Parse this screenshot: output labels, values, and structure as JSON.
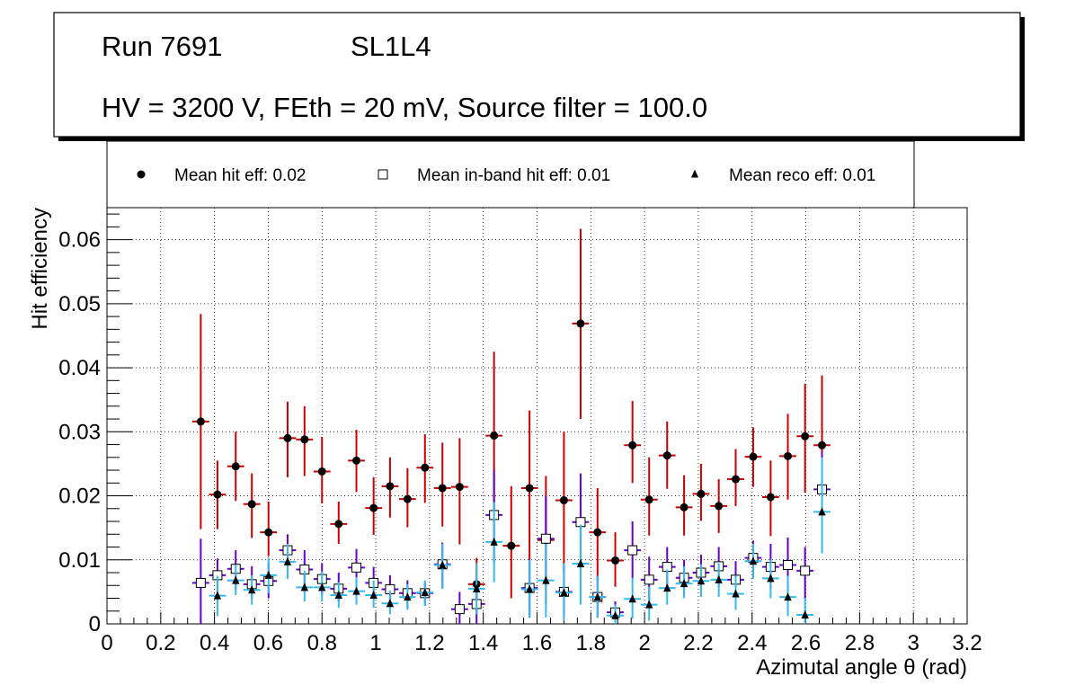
{
  "title_box": {
    "run": "Run 7691",
    "layer": "SL1L4",
    "conditions": "HV = 3200 V, FEth = 20 mV, Source filter = 100.0"
  },
  "legend": {
    "hit": "Mean hit  eff: 0.02",
    "inband": "Mean in-band hit eff: 0.01",
    "reco": "Mean reco eff: 0.01"
  },
  "colors": {
    "hit_err": "#cc0000",
    "inband_err": "#6600cc",
    "reco_err": "#33bbee"
  },
  "chart_data": {
    "type": "scatter",
    "xlabel": "Azimutal angle θ (rad)",
    "ylabel": "Hit efficiency",
    "xlim": [
      0,
      3.2
    ],
    "ylim": [
      0,
      0.065
    ],
    "grid": true,
    "xticks": [
      "0",
      "0.2",
      "0.4",
      "0.6",
      "0.8",
      "1",
      "1.2",
      "1.4",
      "1.6",
      "1.8",
      "2",
      "2.2",
      "2.4",
      "2.6",
      "2.8",
      "3",
      "3.2"
    ],
    "yticks": [
      "0",
      "0.01",
      "0.02",
      "0.03",
      "0.04",
      "0.05",
      "0.06"
    ],
    "x_bin_halfwidth": 0.0314,
    "series": [
      {
        "name": "Mean hit  eff: 0.02",
        "marker": "circle",
        "points": [
          {
            "x": 0.349,
            "y": 0.0316,
            "lo": 0.0148,
            "hi": 0.0484
          },
          {
            "x": 0.411,
            "y": 0.0202,
            "lo": 0.0148,
            "hi": 0.0255
          },
          {
            "x": 0.479,
            "y": 0.0246,
            "lo": 0.0192,
            "hi": 0.03
          },
          {
            "x": 0.539,
            "y": 0.0187,
            "lo": 0.0134,
            "hi": 0.0235
          },
          {
            "x": 0.601,
            "y": 0.0143,
            "lo": 0.0106,
            "hi": 0.0191
          },
          {
            "x": 0.672,
            "y": 0.029,
            "lo": 0.0229,
            "hi": 0.0347
          },
          {
            "x": 0.735,
            "y": 0.0288,
            "lo": 0.0231,
            "hi": 0.034
          },
          {
            "x": 0.8,
            "y": 0.0238,
            "lo": 0.0188,
            "hi": 0.0292
          },
          {
            "x": 0.862,
            "y": 0.0156,
            "lo": 0.0125,
            "hi": 0.0191
          },
          {
            "x": 0.928,
            "y": 0.0255,
            "lo": 0.0206,
            "hi": 0.0303
          },
          {
            "x": 0.992,
            "y": 0.0181,
            "lo": 0.0139,
            "hi": 0.0229
          },
          {
            "x": 1.053,
            "y": 0.0215,
            "lo": 0.0166,
            "hi": 0.026
          },
          {
            "x": 1.118,
            "y": 0.0195,
            "lo": 0.0151,
            "hi": 0.0243
          },
          {
            "x": 1.183,
            "y": 0.0244,
            "lo": 0.0189,
            "hi": 0.0296
          },
          {
            "x": 1.248,
            "y": 0.0212,
            "lo": 0.0152,
            "hi": 0.0283
          },
          {
            "x": 1.312,
            "y": 0.0214,
            "lo": 0.0124,
            "hi": 0.029
          },
          {
            "x": 1.375,
            "y": 0.0062,
            "lo": 0.0015,
            "hi": 0.0103
          },
          {
            "x": 1.44,
            "y": 0.0294,
            "lo": 0.0164,
            "hi": 0.0425
          },
          {
            "x": 1.504,
            "y": 0.0122,
            "lo": 0.004,
            "hi": 0.0215
          },
          {
            "x": 1.572,
            "y": 0.0212,
            "lo": 0.001,
            "hi": 0.0333
          },
          {
            "x": 1.633,
            "y": 0.0131,
            "lo": 0.003,
            "hi": 0.0231
          },
          {
            "x": 1.7,
            "y": 0.0193,
            "lo": 0.008,
            "hi": 0.03
          },
          {
            "x": 1.762,
            "y": 0.0469,
            "lo": 0.032,
            "hi": 0.0617
          },
          {
            "x": 1.825,
            "y": 0.0143,
            "lo": 0.0068,
            "hi": 0.0212
          },
          {
            "x": 1.891,
            "y": 0.0099,
            "lo": 0.0058,
            "hi": 0.0143
          },
          {
            "x": 1.955,
            "y": 0.0279,
            "lo": 0.022,
            "hi": 0.0348
          },
          {
            "x": 2.017,
            "y": 0.0194,
            "lo": 0.0138,
            "hi": 0.026
          },
          {
            "x": 2.084,
            "y": 0.0263,
            "lo": 0.0211,
            "hi": 0.0316
          },
          {
            "x": 2.147,
            "y": 0.0182,
            "lo": 0.0138,
            "hi": 0.0232
          },
          {
            "x": 2.21,
            "y": 0.0203,
            "lo": 0.0161,
            "hi": 0.025
          },
          {
            "x": 2.276,
            "y": 0.0184,
            "lo": 0.0142,
            "hi": 0.0226
          },
          {
            "x": 2.339,
            "y": 0.0226,
            "lo": 0.0184,
            "hi": 0.0273
          },
          {
            "x": 2.404,
            "y": 0.0261,
            "lo": 0.0214,
            "hi": 0.0307
          },
          {
            "x": 2.469,
            "y": 0.0198,
            "lo": 0.0137,
            "hi": 0.0255
          },
          {
            "x": 2.533,
            "y": 0.0262,
            "lo": 0.0194,
            "hi": 0.0328
          },
          {
            "x": 2.597,
            "y": 0.0293,
            "lo": 0.0205,
            "hi": 0.0375
          },
          {
            "x": 2.66,
            "y": 0.0279,
            "lo": 0.0207,
            "hi": 0.0388
          }
        ]
      },
      {
        "name": "Mean in-band hit eff: 0.01",
        "marker": "open-square",
        "points": [
          {
            "x": 0.349,
            "y": 0.0064,
            "lo": 0.0,
            "hi": 0.0133
          },
          {
            "x": 0.411,
            "y": 0.0076,
            "lo": 0.0035,
            "hi": 0.0102
          },
          {
            "x": 0.479,
            "y": 0.0086,
            "lo": 0.0053,
            "hi": 0.0115
          },
          {
            "x": 0.539,
            "y": 0.0062,
            "lo": 0.004,
            "hi": 0.009
          },
          {
            "x": 0.601,
            "y": 0.0067,
            "lo": 0.004,
            "hi": 0.0096
          },
          {
            "x": 0.672,
            "y": 0.0115,
            "lo": 0.008,
            "hi": 0.014
          },
          {
            "x": 0.735,
            "y": 0.0085,
            "lo": 0.0055,
            "hi": 0.0115
          },
          {
            "x": 0.8,
            "y": 0.007,
            "lo": 0.0045,
            "hi": 0.0095
          },
          {
            "x": 0.862,
            "y": 0.0055,
            "lo": 0.0035,
            "hi": 0.008
          },
          {
            "x": 0.928,
            "y": 0.0088,
            "lo": 0.006,
            "hi": 0.0117
          },
          {
            "x": 0.992,
            "y": 0.0064,
            "lo": 0.0041,
            "hi": 0.0089
          },
          {
            "x": 1.053,
            "y": 0.0054,
            "lo": 0.0032,
            "hi": 0.0076
          },
          {
            "x": 1.118,
            "y": 0.0048,
            "lo": 0.0025,
            "hi": 0.0068
          },
          {
            "x": 1.183,
            "y": 0.0048,
            "lo": 0.0028,
            "hi": 0.0065
          },
          {
            "x": 1.248,
            "y": 0.0093,
            "lo": 0.0055,
            "hi": 0.0127
          },
          {
            "x": 1.312,
            "y": 0.0023,
            "lo": 0.0,
            "hi": 0.005
          },
          {
            "x": 1.375,
            "y": 0.0031,
            "lo": 0.0,
            "hi": 0.006
          },
          {
            "x": 1.44,
            "y": 0.017,
            "lo": 0.0095,
            "hi": 0.024
          },
          {
            "x": 1.572,
            "y": 0.0056,
            "lo": 0.001,
            "hi": 0.01
          },
          {
            "x": 1.633,
            "y": 0.0133,
            "lo": 0.006,
            "hi": 0.02
          },
          {
            "x": 1.7,
            "y": 0.005,
            "lo": 0.001,
            "hi": 0.0095
          },
          {
            "x": 1.762,
            "y": 0.0159,
            "lo": 0.0085,
            "hi": 0.0235
          },
          {
            "x": 1.825,
            "y": 0.0042,
            "lo": 0.001,
            "hi": 0.0075
          },
          {
            "x": 1.891,
            "y": 0.0018,
            "lo": 0.0005,
            "hi": 0.0035
          },
          {
            "x": 1.955,
            "y": 0.0115,
            "lo": 0.007,
            "hi": 0.016
          },
          {
            "x": 2.017,
            "y": 0.0069,
            "lo": 0.003,
            "hi": 0.0105
          },
          {
            "x": 2.084,
            "y": 0.0089,
            "lo": 0.0055,
            "hi": 0.012
          },
          {
            "x": 2.147,
            "y": 0.0072,
            "lo": 0.0045,
            "hi": 0.01
          },
          {
            "x": 2.21,
            "y": 0.008,
            "lo": 0.005,
            "hi": 0.0108
          },
          {
            "x": 2.276,
            "y": 0.009,
            "lo": 0.0058,
            "hi": 0.012
          },
          {
            "x": 2.339,
            "y": 0.0069,
            "lo": 0.0042,
            "hi": 0.0098
          },
          {
            "x": 2.404,
            "y": 0.0103,
            "lo": 0.0075,
            "hi": 0.013
          },
          {
            "x": 2.469,
            "y": 0.0089,
            "lo": 0.0055,
            "hi": 0.0125
          },
          {
            "x": 2.533,
            "y": 0.0092,
            "lo": 0.005,
            "hi": 0.0135
          },
          {
            "x": 2.597,
            "y": 0.0083,
            "lo": 0.004,
            "hi": 0.012
          },
          {
            "x": 2.66,
            "y": 0.021,
            "lo": 0.014,
            "hi": 0.027
          }
        ]
      },
      {
        "name": "Mean reco eff: 0.01",
        "marker": "triangle",
        "points": [
          {
            "x": 0.411,
            "y": 0.0044,
            "lo": 0.0012,
            "hi": 0.0075
          },
          {
            "x": 0.479,
            "y": 0.0068,
            "lo": 0.0045,
            "hi": 0.0092
          },
          {
            "x": 0.539,
            "y": 0.0053,
            "lo": 0.003,
            "hi": 0.0076
          },
          {
            "x": 0.601,
            "y": 0.0076,
            "lo": 0.0048,
            "hi": 0.0103
          },
          {
            "x": 0.672,
            "y": 0.0097,
            "lo": 0.007,
            "hi": 0.0125
          },
          {
            "x": 0.735,
            "y": 0.0057,
            "lo": 0.0035,
            "hi": 0.0083
          },
          {
            "x": 0.8,
            "y": 0.0057,
            "lo": 0.0035,
            "hi": 0.0082
          },
          {
            "x": 0.862,
            "y": 0.0045,
            "lo": 0.0025,
            "hi": 0.0065
          },
          {
            "x": 0.928,
            "y": 0.0051,
            "lo": 0.003,
            "hi": 0.0073
          },
          {
            "x": 0.992,
            "y": 0.0045,
            "lo": 0.0025,
            "hi": 0.0068
          },
          {
            "x": 1.053,
            "y": 0.0032,
            "lo": 0.0015,
            "hi": 0.0052
          },
          {
            "x": 1.118,
            "y": 0.0042,
            "lo": 0.0022,
            "hi": 0.0062
          },
          {
            "x": 1.183,
            "y": 0.0049,
            "lo": 0.0028,
            "hi": 0.0068
          },
          {
            "x": 1.248,
            "y": 0.0092,
            "lo": 0.0055,
            "hi": 0.0125
          },
          {
            "x": 1.375,
            "y": 0.0055,
            "lo": 0.0015,
            "hi": 0.0095
          },
          {
            "x": 1.44,
            "y": 0.0128,
            "lo": 0.0065,
            "hi": 0.019
          },
          {
            "x": 1.572,
            "y": 0.0054,
            "lo": 0.001,
            "hi": 0.01
          },
          {
            "x": 1.633,
            "y": 0.0068,
            "lo": 0.001,
            "hi": 0.0125
          },
          {
            "x": 1.7,
            "y": 0.0049,
            "lo": 0.0005,
            "hi": 0.0095
          },
          {
            "x": 1.762,
            "y": 0.0094,
            "lo": 0.003,
            "hi": 0.0155
          },
          {
            "x": 1.825,
            "y": 0.0042,
            "lo": 0.001,
            "hi": 0.0075
          },
          {
            "x": 1.891,
            "y": 0.0013,
            "lo": 0.0,
            "hi": 0.003
          },
          {
            "x": 1.955,
            "y": 0.0039,
            "lo": 0.0008,
            "hi": 0.0072
          },
          {
            "x": 2.017,
            "y": 0.003,
            "lo": 0.0005,
            "hi": 0.0058
          },
          {
            "x": 2.084,
            "y": 0.0056,
            "lo": 0.003,
            "hi": 0.0085
          },
          {
            "x": 2.147,
            "y": 0.0063,
            "lo": 0.004,
            "hi": 0.009
          },
          {
            "x": 2.21,
            "y": 0.0067,
            "lo": 0.0042,
            "hi": 0.0093
          },
          {
            "x": 2.276,
            "y": 0.0069,
            "lo": 0.0042,
            "hi": 0.0095
          },
          {
            "x": 2.339,
            "y": 0.0047,
            "lo": 0.0022,
            "hi": 0.0075
          },
          {
            "x": 2.404,
            "y": 0.0098,
            "lo": 0.007,
            "hi": 0.0125
          },
          {
            "x": 2.469,
            "y": 0.0071,
            "lo": 0.004,
            "hi": 0.01
          },
          {
            "x": 2.533,
            "y": 0.0042,
            "lo": 0.0012,
            "hi": 0.0075
          },
          {
            "x": 2.597,
            "y": 0.0014,
            "lo": 0.0,
            "hi": 0.004
          },
          {
            "x": 2.66,
            "y": 0.0175,
            "lo": 0.011,
            "hi": 0.026
          }
        ]
      }
    ]
  }
}
